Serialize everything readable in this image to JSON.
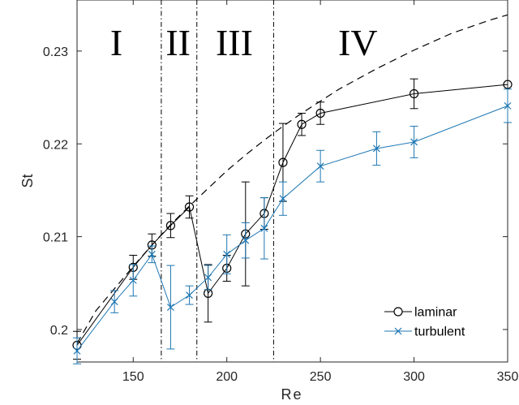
{
  "chart_data": {
    "type": "line",
    "xlabel": "Re",
    "ylabel": "St",
    "xlim": [
      120,
      350
    ],
    "ylim": [
      0.1965,
      0.2355
    ],
    "xticks": [
      150,
      200,
      250,
      300,
      350
    ],
    "yticks": [
      0.2,
      0.21,
      0.22,
      0.23
    ],
    "ytick_labels": [
      "0.2",
      "0.21",
      "0.22",
      "0.23"
    ],
    "grid": false,
    "legend_position": "bottom-right",
    "regions": [
      {
        "label": "I",
        "x_center": 141
      },
      {
        "label": "II",
        "x_center": 174
      },
      {
        "label": "III",
        "x_center": 204
      },
      {
        "label": "IV",
        "x_center": 270
      }
    ],
    "region_boundaries": [
      165,
      184,
      225
    ],
    "series": [
      {
        "name": "laminar",
        "color": "#000000",
        "marker": "circle",
        "points": [
          {
            "x": 120,
            "y": 0.1983,
            "err": 0.0015
          },
          {
            "x": 150,
            "y": 0.2067,
            "err": 0.0013
          },
          {
            "x": 160,
            "y": 0.2091,
            "err": 0.0012
          },
          {
            "x": 170,
            "y": 0.2112,
            "err": 0.0013
          },
          {
            "x": 180,
            "y": 0.2132,
            "err": 0.0012
          },
          {
            "x": 190,
            "y": 0.2039,
            "err": 0.0031
          },
          {
            "x": 200,
            "y": 0.2066,
            "err": 0.0014
          },
          {
            "x": 210,
            "y": 0.2103,
            "err": 0.0056
          },
          {
            "x": 220,
            "y": 0.2125,
            "err": 0.0017
          },
          {
            "x": 230,
            "y": 0.218,
            "err": 0.0042
          },
          {
            "x": 240,
            "y": 0.2221,
            "err": 0.0012
          },
          {
            "x": 250,
            "y": 0.2233,
            "err": 0.0012
          },
          {
            "x": 300,
            "y": 0.2254,
            "err": 0.0016
          },
          {
            "x": 350,
            "y": 0.2264,
            "err": 0
          }
        ]
      },
      {
        "name": "turbulent",
        "color": "#1f78b4",
        "marker": "x",
        "points": [
          {
            "x": 120,
            "y": 0.1977,
            "err": 0.0014
          },
          {
            "x": 140,
            "y": 0.203,
            "err": 0.0012
          },
          {
            "x": 150,
            "y": 0.2053,
            "err": 0.0017
          },
          {
            "x": 160,
            "y": 0.2081,
            "err": 0.0009
          },
          {
            "x": 170,
            "y": 0.2024,
            "err": 0.0045
          },
          {
            "x": 180,
            "y": 0.2037,
            "err": 0.001
          },
          {
            "x": 190,
            "y": 0.2056,
            "err": 0.0013
          },
          {
            "x": 200,
            "y": 0.2081,
            "err": 0.0021
          },
          {
            "x": 210,
            "y": 0.2096,
            "err": 0.0019
          },
          {
            "x": 220,
            "y": 0.2109,
            "err": 0.0033
          },
          {
            "x": 230,
            "y": 0.2141,
            "err": 0.0018
          },
          {
            "x": 250,
            "y": 0.2176,
            "err": 0.0017
          },
          {
            "x": 280,
            "y": 0.2195,
            "err": 0.0018
          },
          {
            "x": 300,
            "y": 0.2202,
            "err": 0.0017
          },
          {
            "x": 350,
            "y": 0.2241,
            "err": 0.0018
          }
        ]
      }
    ],
    "reference_curve": {
      "style": "dashed",
      "color": "#000000",
      "points": [
        {
          "x": 120,
          "y": 0.1985
        },
        {
          "x": 130,
          "y": 0.202
        },
        {
          "x": 140,
          "y": 0.2044
        },
        {
          "x": 150,
          "y": 0.2068
        },
        {
          "x": 160,
          "y": 0.2091
        },
        {
          "x": 170,
          "y": 0.2113
        },
        {
          "x": 180,
          "y": 0.2133
        },
        {
          "x": 190,
          "y": 0.2152
        },
        {
          "x": 200,
          "y": 0.2171
        },
        {
          "x": 210,
          "y": 0.2188
        },
        {
          "x": 220,
          "y": 0.2204
        },
        {
          "x": 230,
          "y": 0.2219
        },
        {
          "x": 240,
          "y": 0.2233
        },
        {
          "x": 250,
          "y": 0.2246
        },
        {
          "x": 260,
          "y": 0.2259
        },
        {
          "x": 270,
          "y": 0.227
        },
        {
          "x": 280,
          "y": 0.2281
        },
        {
          "x": 290,
          "y": 0.2291
        },
        {
          "x": 300,
          "y": 0.2301
        },
        {
          "x": 310,
          "y": 0.231
        },
        {
          "x": 320,
          "y": 0.2319
        },
        {
          "x": 330,
          "y": 0.2326
        },
        {
          "x": 340,
          "y": 0.2333
        },
        {
          "x": 350,
          "y": 0.2339
        }
      ]
    }
  }
}
